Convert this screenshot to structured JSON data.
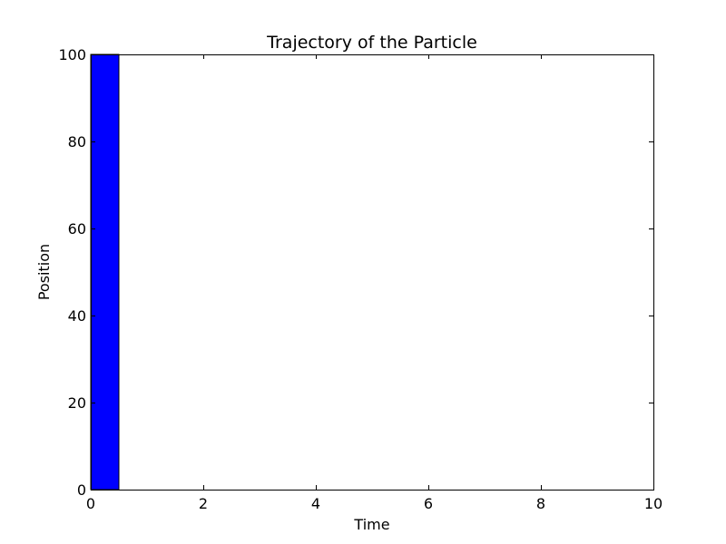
{
  "chart_data": {
    "type": "bar",
    "title": "Trajectory of the Particle",
    "xlabel": "Time",
    "ylabel": "Position",
    "xlim": [
      0,
      10
    ],
    "ylim": [
      0,
      100
    ],
    "xticks": [
      0,
      2,
      4,
      6,
      8,
      10
    ],
    "yticks": [
      0,
      20,
      40,
      60,
      80,
      100
    ],
    "bars": [
      {
        "x_start": 0,
        "x_end": 0.5,
        "value": 100
      }
    ],
    "bar_color": "#0000ff",
    "grid": false
  }
}
